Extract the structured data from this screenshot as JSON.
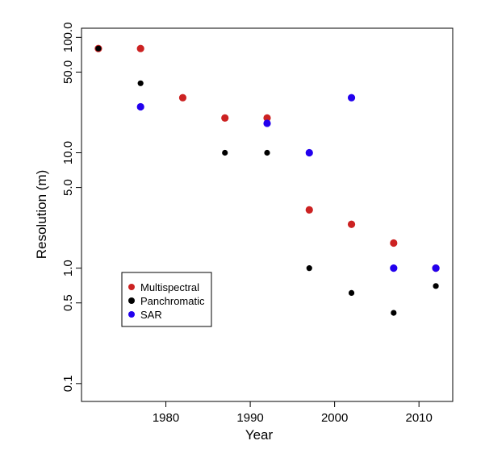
{
  "chart_data": {
    "type": "scatter",
    "xlabel": "Year",
    "ylabel": "Resolution (m)",
    "y_scale": "log",
    "xlim": [
      1970,
      2014
    ],
    "ylim": [
      0.07,
      120
    ],
    "x_ticks": [
      1980,
      1990,
      2000,
      2010
    ],
    "y_ticks": [
      0.1,
      0.5,
      1.0,
      5.0,
      10.0,
      50.0,
      100.0
    ],
    "y_tick_labels": [
      "0.1",
      "0.5",
      "1.0",
      "5.0",
      "10.0",
      "50.0",
      "100.0"
    ],
    "legend_position": "lower-left",
    "series": [
      {
        "name": "Multispectral",
        "color": "#cc2222",
        "points": [
          {
            "x": 1972,
            "y": 80
          },
          {
            "x": 1977,
            "y": 80
          },
          {
            "x": 1982,
            "y": 30
          },
          {
            "x": 1987,
            "y": 20
          },
          {
            "x": 1992,
            "y": 20
          },
          {
            "x": 1997,
            "y": 3.2
          },
          {
            "x": 2002,
            "y": 2.4
          },
          {
            "x": 2007,
            "y": 1.65
          },
          {
            "x": 2012,
            "y": 1.0
          }
        ]
      },
      {
        "name": "Panchromatic",
        "color": "#000000",
        "points": [
          {
            "x": 1972,
            "y": 80
          },
          {
            "x": 1977,
            "y": 40
          },
          {
            "x": 1987,
            "y": 10
          },
          {
            "x": 1992,
            "y": 10
          },
          {
            "x": 1997,
            "y": 1.0
          },
          {
            "x": 2002,
            "y": 0.61
          },
          {
            "x": 2007,
            "y": 0.41
          },
          {
            "x": 2012,
            "y": 0.7
          }
        ]
      },
      {
        "name": "SAR",
        "color": "#2200ee",
        "points": [
          {
            "x": 1977,
            "y": 25
          },
          {
            "x": 1992,
            "y": 18
          },
          {
            "x": 1997,
            "y": 10
          },
          {
            "x": 2002,
            "y": 30
          },
          {
            "x": 2007,
            "y": 1.0
          },
          {
            "x": 2012,
            "y": 1.0
          }
        ]
      }
    ]
  }
}
